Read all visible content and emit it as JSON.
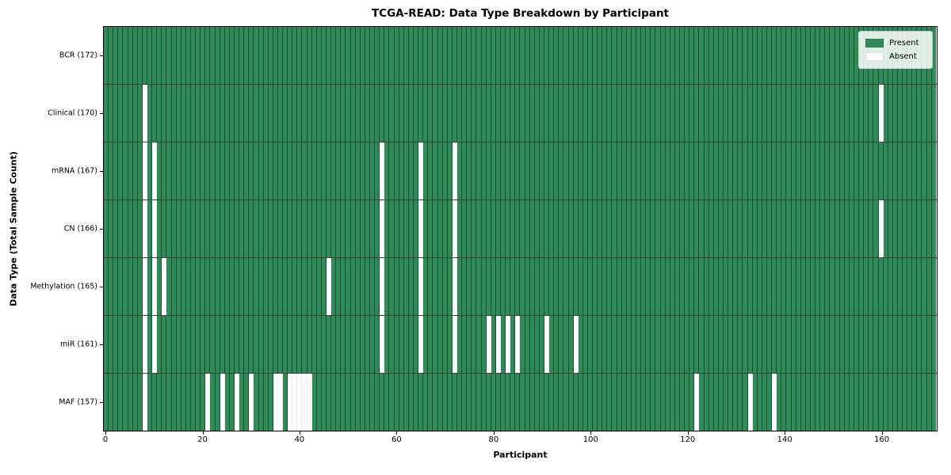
{
  "figure": {
    "title": "TCGA-READ: Data Type Breakdown by Participant",
    "xlabel": "Participant",
    "ylabel": "Data Type (Total Sample Count)"
  },
  "legend": {
    "position": "upper right",
    "items": [
      {
        "label": "Present",
        "color": "#2e8b57"
      },
      {
        "label": "Absent",
        "color": "#ffffff"
      }
    ]
  },
  "colors": {
    "present": "#2e8b57",
    "absent": "#ffffff",
    "cell_edge": "rgba(0,0,0,0.42)",
    "spine": "#000000",
    "background": "#ffffff"
  },
  "chart_data": {
    "type": "heatmap",
    "title": "TCGA-READ: Data Type Breakdown by Participant",
    "xlabel": "Participant",
    "ylabel": "Data Type (Total Sample Count)",
    "n_participants": 172,
    "x_ticks": [
      0,
      20,
      40,
      60,
      80,
      100,
      120,
      140,
      160
    ],
    "x_range": [
      0,
      172
    ],
    "cell_states": {
      "present": 1,
      "absent": 0
    },
    "legend_entries": [
      "Present",
      "Absent"
    ],
    "legend_position": "upper right",
    "grid": false,
    "rows": [
      {
        "label": "BCR (172)",
        "data_type": "BCR",
        "total_samples": 172,
        "absent_participants": []
      },
      {
        "label": "Clinical (170)",
        "data_type": "Clinical",
        "total_samples": 170,
        "absent_participants": [
          8,
          160
        ]
      },
      {
        "label": "mRNA (167)",
        "data_type": "mRNA",
        "total_samples": 167,
        "absent_participants": [
          8,
          10,
          57,
          65,
          72
        ]
      },
      {
        "label": "CN (166)",
        "data_type": "CN",
        "total_samples": 166,
        "absent_participants": [
          8,
          10,
          57,
          65,
          72,
          160
        ]
      },
      {
        "label": "Methylation (165)",
        "data_type": "Methylation",
        "total_samples": 165,
        "absent_participants": [
          8,
          10,
          12,
          46,
          57,
          65,
          72
        ]
      },
      {
        "label": "miR (161)",
        "data_type": "miR",
        "total_samples": 161,
        "absent_participants": [
          8,
          10,
          57,
          65,
          72,
          79,
          81,
          83,
          85,
          91,
          97
        ]
      },
      {
        "label": "MAF (157)",
        "data_type": "MAF",
        "total_samples": 157,
        "absent_participants": [
          8,
          21,
          24,
          27,
          30,
          35,
          36,
          38,
          39,
          40,
          41,
          42,
          122,
          133,
          138
        ]
      }
    ]
  }
}
